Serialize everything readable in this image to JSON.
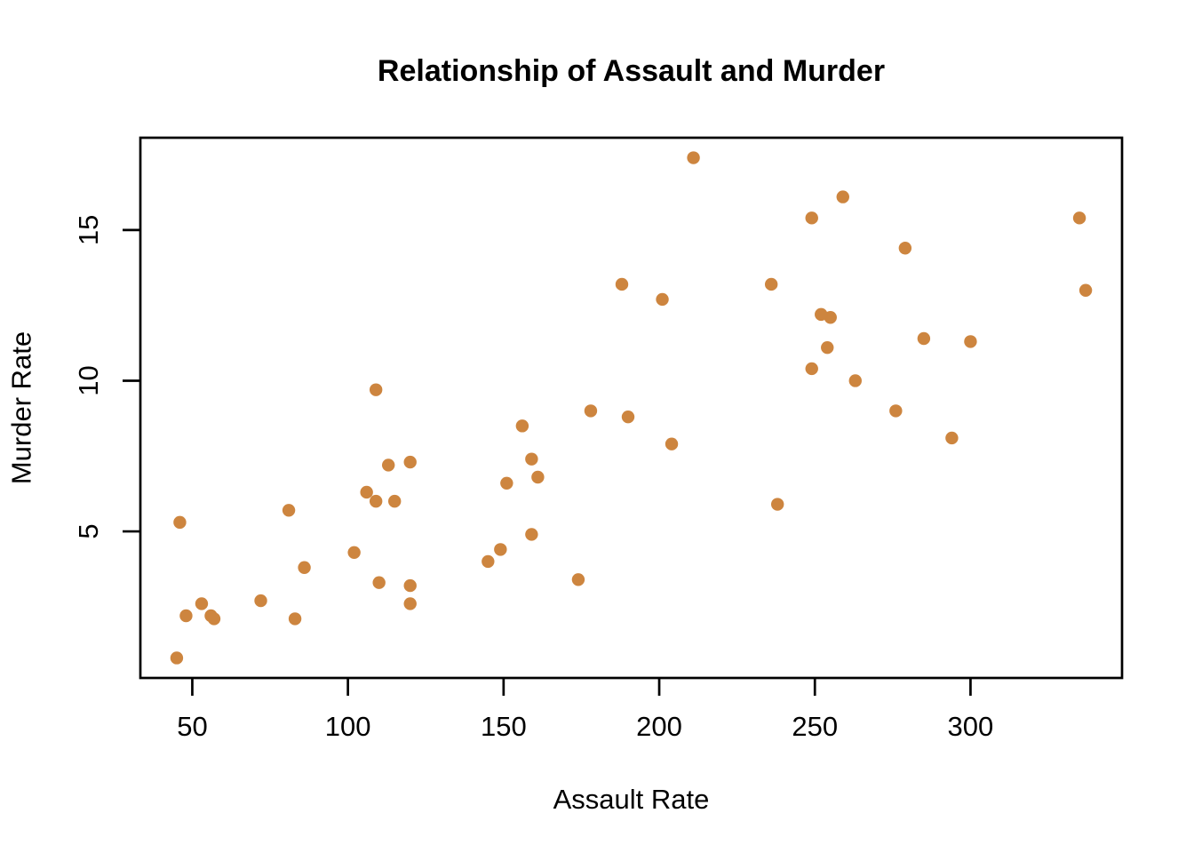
{
  "chart_data": {
    "type": "scatter",
    "title": "Relationship of Assault and Murder",
    "xlabel": "Assault Rate",
    "ylabel": "Murder Rate",
    "x_ticks": [
      50,
      100,
      150,
      200,
      250,
      300
    ],
    "y_ticks": [
      5,
      10,
      15
    ],
    "xlim": [
      33.32,
      348.68
    ],
    "ylim": [
      0.136,
      18.064
    ],
    "grid": false,
    "legend": "none",
    "point_color": "#CD853F",
    "axis_color": "#000000",
    "background_color": "#FFFFFF",
    "point_radius_px": 7.2,
    "points": [
      [
        236,
        13.2
      ],
      [
        263,
        10.0
      ],
      [
        294,
        8.1
      ],
      [
        190,
        8.8
      ],
      [
        276,
        9.0
      ],
      [
        204,
        7.9
      ],
      [
        110,
        3.3
      ],
      [
        238,
        5.9
      ],
      [
        335,
        15.4
      ],
      [
        211,
        17.4
      ],
      [
        46,
        5.3
      ],
      [
        120,
        2.6
      ],
      [
        249,
        10.4
      ],
      [
        113,
        7.2
      ],
      [
        56,
        2.2
      ],
      [
        115,
        6.0
      ],
      [
        109,
        9.7
      ],
      [
        249,
        15.4
      ],
      [
        83,
        2.1
      ],
      [
        300,
        11.3
      ],
      [
        149,
        4.4
      ],
      [
        255,
        12.1
      ],
      [
        72,
        2.7
      ],
      [
        259,
        16.1
      ],
      [
        178,
        9.0
      ],
      [
        109,
        6.0
      ],
      [
        102,
        4.3
      ],
      [
        252,
        12.2
      ],
      [
        57,
        2.1
      ],
      [
        159,
        7.4
      ],
      [
        285,
        11.4
      ],
      [
        254,
        11.1
      ],
      [
        337,
        13.0
      ],
      [
        45,
        0.8
      ],
      [
        120,
        7.3
      ],
      [
        151,
        6.6
      ],
      [
        159,
        4.9
      ],
      [
        106,
        6.3
      ],
      [
        174,
        3.4
      ],
      [
        279,
        14.4
      ],
      [
        86,
        3.8
      ],
      [
        188,
        13.2
      ],
      [
        201,
        12.7
      ],
      [
        120,
        3.2
      ],
      [
        48,
        2.2
      ],
      [
        156,
        8.5
      ],
      [
        145,
        4.0
      ],
      [
        81,
        5.7
      ],
      [
        53,
        2.6
      ],
      [
        161,
        6.8
      ]
    ]
  }
}
